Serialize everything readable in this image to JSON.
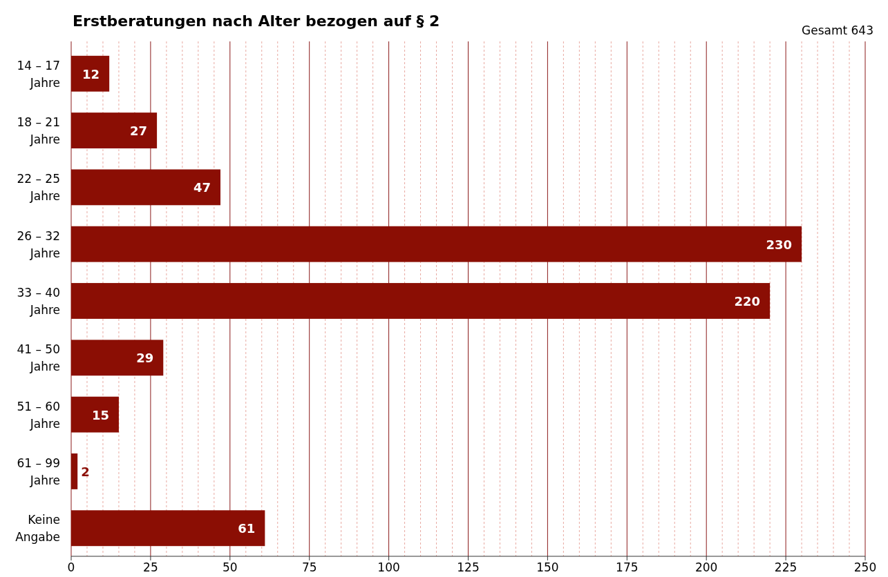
{
  "chart_data": {
    "type": "bar",
    "orientation": "horizontal",
    "title": "Erstberatungen nach Alter bezogen auf § 2",
    "annotations": [
      "Gesamt 643"
    ],
    "categories": [
      "14 – 17 Jahre",
      "18 – 21 Jahre",
      "22 – 25 Jahre",
      "26 – 32 Jahre",
      "33 – 40 Jahre",
      "41 – 50 Jahre",
      "51 – 60 Jahre",
      "61 – 99 Jahre",
      "Keine Angabe"
    ],
    "values": [
      12,
      27,
      47,
      230,
      220,
      29,
      15,
      2,
      61
    ],
    "color": "#8b0e04",
    "data_labels": true,
    "grid": "x",
    "xlim": [
      0,
      250
    ],
    "xticks": [
      0,
      {
        "value": 5,
        "label": null
      },
      {
        "value": 10,
        "label": null
      },
      {
        "value": 15,
        "label": null
      },
      {
        "value": 20,
        "label": null
      },
      25,
      {
        "value": 30,
        "label": null
      },
      {
        "value": 35,
        "label": null
      },
      {
        "value": 40,
        "label": null
      },
      {
        "value": 45,
        "label": null
      },
      50,
      {
        "value": 55,
        "label": null
      },
      {
        "value": 60,
        "label": null
      },
      {
        "value": 65,
        "label": null
      },
      {
        "value": 70,
        "label": null
      },
      75,
      {
        "value": 80,
        "label": null
      },
      {
        "value": 85,
        "label": null
      },
      {
        "value": 90,
        "label": null
      },
      {
        "value": 95,
        "label": null
      },
      100,
      {
        "value": 105,
        "label": null
      },
      {
        "value": 110,
        "label": null
      },
      {
        "value": 115,
        "label": null
      },
      {
        "value": 120,
        "label": null
      },
      125,
      {
        "value": 130,
        "label": null
      },
      {
        "value": 135,
        "label": null
      },
      {
        "value": 140,
        "label": null
      },
      {
        "value": 145,
        "label": null
      },
      150,
      {
        "value": 155,
        "label": null
      },
      {
        "value": 160,
        "label": null
      },
      {
        "value": 165,
        "label": null
      },
      {
        "value": 170,
        "label": null
      },
      175,
      {
        "value": 180,
        "label": null
      },
      {
        "value": 185,
        "label": null
      },
      {
        "value": 190,
        "label": null
      },
      {
        "value": 195,
        "label": null
      },
      200,
      {
        "value": 205,
        "label": null
      },
      {
        "value": 210,
        "label": null
      },
      {
        "value": 215,
        "label": null
      },
      {
        "value": 220,
        "label": null
      },
      225,
      {
        "value": 230,
        "label": null
      },
      {
        "value": 235,
        "label": null
      },
      {
        "value": 240,
        "label": null
      },
      {
        "value": 245,
        "label": null
      },
      250
    ]
  }
}
